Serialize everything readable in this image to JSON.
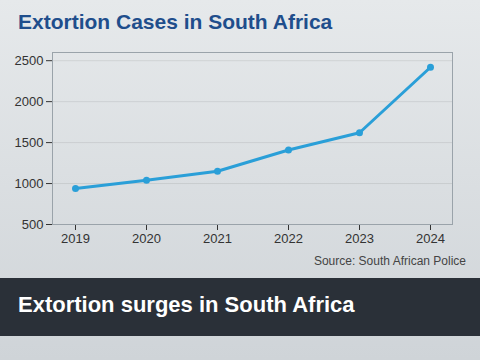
{
  "chart_data": {
    "type": "line",
    "title": "Extortion Cases in South Africa",
    "annotations": [
      "Extortion surges in South Africa"
    ],
    "caption": "Source: South African Police",
    "categories": [
      "2019",
      "2020",
      "2021",
      "2022",
      "2023",
      "2024"
    ],
    "values": [
      940,
      1040,
      1150,
      1410,
      1620,
      2420
    ],
    "color": "#2a9fd8",
    "marker": "circle",
    "ylim": [
      500,
      2600
    ],
    "yticks": [
      500,
      1000,
      1500,
      2000,
      2500
    ],
    "grid": true
  }
}
